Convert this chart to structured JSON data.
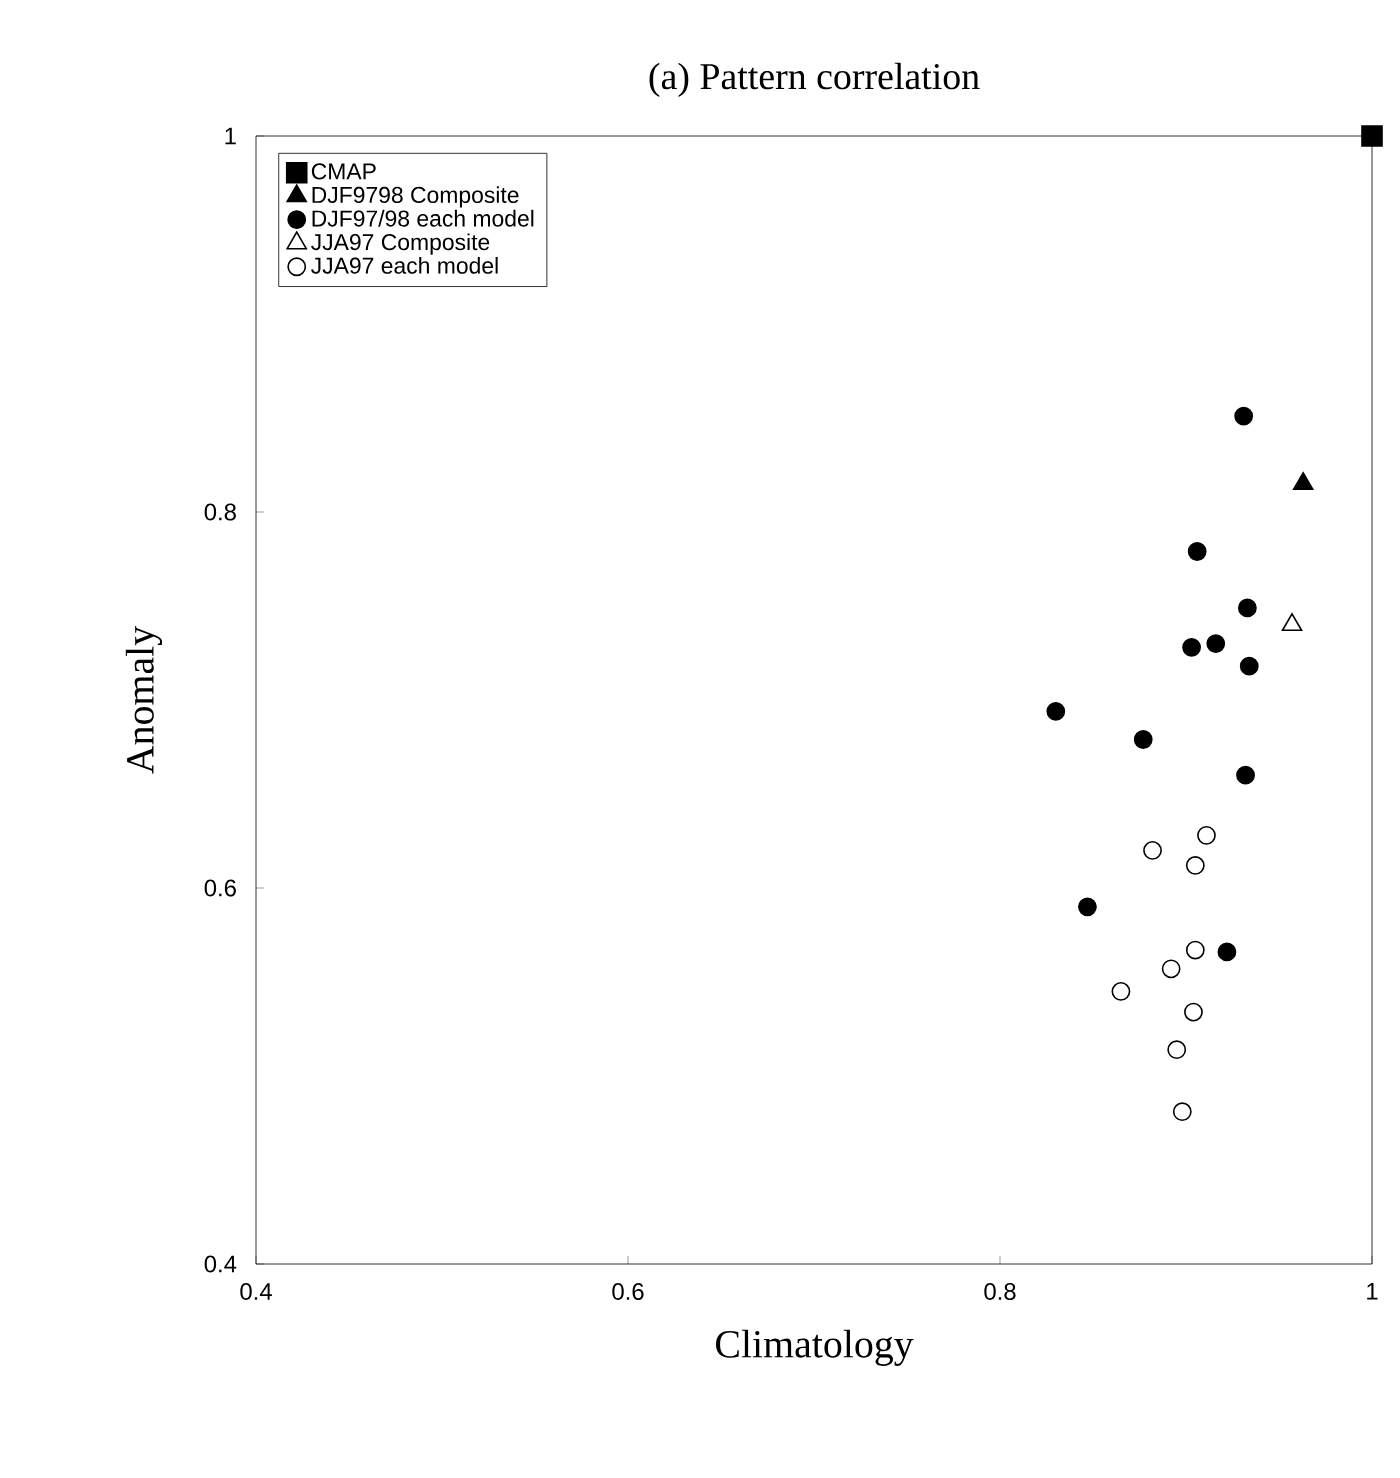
{
  "chart_data": {
    "type": "scatter",
    "title": "(a) Pattern correlation",
    "xlabel": "Climatology",
    "ylabel": "Anomaly",
    "xlim": [
      0.4,
      1
    ],
    "ylim": [
      0.4,
      1
    ],
    "xticks": [
      0.4,
      0.6,
      0.8,
      1
    ],
    "yticks": [
      0.4,
      0.6,
      0.8,
      1
    ],
    "grid": false,
    "legend": "top left",
    "series": [
      {
        "name": "CMAP",
        "color": "#000000",
        "marker": "square",
        "x": [
          1
        ],
        "values": [
          1
        ]
      },
      {
        "name": "DJF9798 Composite",
        "color": "#000000",
        "marker": "triangle",
        "x": [
          0.963
        ],
        "values": [
          0.815
        ]
      },
      {
        "name": "DJF97/98 each model",
        "color": "#000000",
        "marker": "circle",
        "x": [
          0.931,
          0.906,
          0.933,
          0.903,
          0.916,
          0.934,
          0.83,
          0.877,
          0.932,
          0.847,
          0.922
        ],
        "values": [
          0.851,
          0.779,
          0.749,
          0.728,
          0.73,
          0.718,
          0.694,
          0.679,
          0.66,
          0.59,
          0.566
        ]
      },
      {
        "name": "JJA97 Composite",
        "color": "#000000",
        "marker": "triangle-open",
        "x": [
          0.957
        ],
        "values": [
          0.74
        ]
      },
      {
        "name": "JJA97 each model",
        "color": "#000000",
        "marker": "circle-open",
        "x": [
          0.882,
          0.911,
          0.905,
          0.905,
          0.892,
          0.865,
          0.904,
          0.895,
          0.898
        ],
        "values": [
          0.62,
          0.628,
          0.612,
          0.567,
          0.557,
          0.545,
          0.534,
          0.514,
          0.481
        ]
      }
    ]
  }
}
